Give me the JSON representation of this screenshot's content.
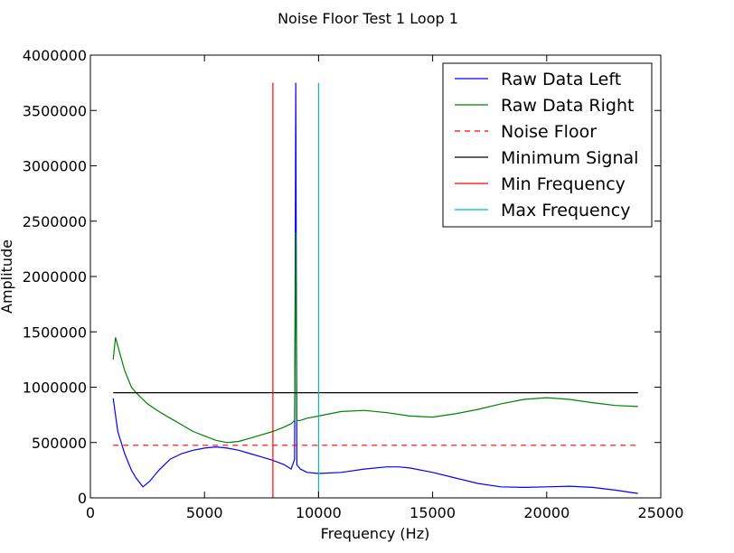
{
  "chart_data": {
    "type": "line",
    "title": "Noise Floor Test 1 Loop 1",
    "xlabel": "Frequency (Hz)",
    "ylabel": "Amplitude",
    "xlim": [
      0,
      25000
    ],
    "ylim": [
      0,
      4000000
    ],
    "x_ticks": [
      "0",
      "5000",
      "10000",
      "15000",
      "20000",
      "25000"
    ],
    "y_ticks": [
      "0",
      "500000",
      "1000000",
      "1500000",
      "2000000",
      "2500000",
      "3000000",
      "3500000",
      "4000000"
    ],
    "grid": false,
    "legend_position": "top-right",
    "series": [
      {
        "name": "Raw Data Left",
        "color": "#0000ff",
        "style": "solid",
        "x": [
          1000,
          1200,
          1500,
          1800,
          2000,
          2300,
          2600,
          3000,
          3500,
          4000,
          4500,
          5000,
          5500,
          6000,
          6500,
          7000,
          7500,
          8000,
          8500,
          8800,
          8950,
          9000,
          9050,
          9200,
          9500,
          10000,
          11000,
          12000,
          13000,
          13500,
          14000,
          15000,
          16000,
          17000,
          18000,
          19000,
          20000,
          21000,
          22000,
          23000,
          24000
        ],
        "y": [
          900000,
          600000,
          400000,
          250000,
          180000,
          100000,
          150000,
          250000,
          350000,
          400000,
          430000,
          450000,
          460000,
          450000,
          430000,
          400000,
          370000,
          340000,
          300000,
          260000,
          350000,
          3750000,
          300000,
          260000,
          230000,
          220000,
          230000,
          260000,
          280000,
          280000,
          270000,
          230000,
          180000,
          130000,
          100000,
          95000,
          100000,
          105000,
          95000,
          70000,
          40000
        ]
      },
      {
        "name": "Raw Data Right",
        "color": "#008000",
        "style": "solid",
        "x": [
          1000,
          1100,
          1300,
          1500,
          1800,
          2000,
          2500,
          3000,
          3500,
          4000,
          4500,
          5000,
          5500,
          6000,
          6500,
          7000,
          7500,
          8000,
          8500,
          8800,
          8950,
          9000,
          9050,
          9200,
          9500,
          10000,
          11000,
          12000,
          13000,
          14000,
          15000,
          16000,
          17000,
          18000,
          19000,
          20000,
          21000,
          22000,
          23000,
          24000
        ],
        "y": [
          1250000,
          1450000,
          1300000,
          1150000,
          1000000,
          950000,
          850000,
          780000,
          720000,
          660000,
          600000,
          560000,
          520000,
          500000,
          510000,
          540000,
          570000,
          600000,
          640000,
          670000,
          700000,
          2400000,
          700000,
          700000,
          720000,
          740000,
          780000,
          790000,
          770000,
          740000,
          730000,
          760000,
          800000,
          850000,
          890000,
          905000,
          890000,
          860000,
          835000,
          825000
        ]
      },
      {
        "name": "Noise Floor",
        "color": "#ff0000",
        "style": "dashed",
        "x": [
          1000,
          24000
        ],
        "y": [
          475000,
          475000
        ]
      },
      {
        "name": "Minimum Signal",
        "color": "#000000",
        "style": "solid",
        "x": [
          1000,
          24000
        ],
        "y": [
          950000,
          950000
        ]
      },
      {
        "name": "Min Frequency",
        "color": "#ff0000",
        "style": "solid",
        "x": [
          8000,
          8000
        ],
        "y": [
          0,
          3750000
        ]
      },
      {
        "name": "Max Frequency",
        "color": "#00bfbf",
        "style": "solid",
        "x": [
          10000,
          10000
        ],
        "y": [
          0,
          3750000
        ]
      }
    ]
  }
}
